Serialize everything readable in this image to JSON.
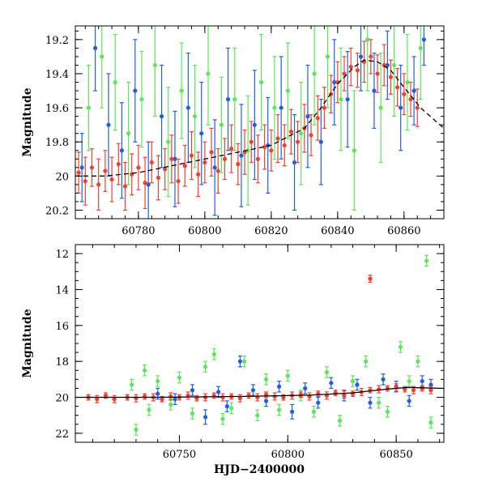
{
  "chart_data": [
    {
      "type": "scatter",
      "title": "",
      "xlabel": "",
      "ylabel": "Magnitude",
      "xlim": [
        60761,
        60872
      ],
      "ylim": [
        20.25,
        19.12
      ],
      "y_inverted": true,
      "xticks": [
        60780,
        60800,
        60820,
        60840,
        60860
      ],
      "yticks": [
        19.2,
        19.4,
        19.6,
        19.8,
        20,
        20.2
      ],
      "ytick_labels": [
        "19.2",
        "19.4",
        "19.6",
        "19.8",
        "20",
        "20.2"
      ],
      "grid": false,
      "legend": "none",
      "colors": {
        "blue": "#1f5fe0",
        "green": "#5ae85a",
        "red": "#f2402e",
        "model": "#000000"
      },
      "model_curve": {
        "style": "dashed",
        "x": [
          60761,
          60770,
          60780,
          60790,
          60800,
          60810,
          60820,
          60830,
          60835,
          60840,
          60845,
          60848,
          60852,
          60856,
          60860,
          60865,
          60872
        ],
        "y": [
          20.0,
          20.0,
          19.98,
          19.94,
          19.9,
          19.86,
          19.82,
          19.72,
          19.6,
          19.46,
          19.36,
          19.32,
          19.33,
          19.38,
          19.48,
          19.6,
          19.72
        ]
      },
      "series": [
        {
          "color": "red",
          "x": [
            60762,
            60764,
            60766,
            60768,
            60770,
            60772,
            60774,
            60776,
            60778,
            60780,
            60782,
            60784,
            60786,
            60788,
            60790,
            60792,
            60794,
            60796,
            60798,
            60800,
            60802,
            60804,
            60806,
            60808,
            60810,
            60812,
            60814,
            60816,
            60818,
            60820,
            60822,
            60824,
            60826,
            60828,
            60830,
            60832,
            60834,
            60836,
            60838,
            60840,
            60842,
            60844,
            60846,
            60848,
            60850,
            60852,
            60854,
            60856,
            60858,
            60860,
            60862,
            60864
          ],
          "y": [
            19.98,
            20.03,
            19.95,
            20.05,
            19.97,
            20.02,
            19.93,
            20.06,
            19.99,
            19.95,
            20.04,
            19.92,
            20.01,
            19.96,
            19.9,
            20.03,
            19.94,
            19.88,
            19.99,
            19.92,
            19.86,
            19.97,
            19.9,
            19.84,
            19.93,
            19.86,
            19.8,
            19.9,
            19.83,
            19.85,
            19.78,
            19.82,
            19.74,
            19.8,
            19.72,
            19.76,
            19.66,
            19.6,
            19.52,
            19.45,
            19.4,
            19.36,
            19.38,
            19.33,
            19.3,
            19.4,
            19.35,
            19.42,
            19.48,
            19.52,
            19.55,
            19.6
          ],
          "err": [
            0.12,
            0.14,
            0.11,
            0.15,
            0.12,
            0.13,
            0.12,
            0.14,
            0.12,
            0.13,
            0.15,
            0.12,
            0.13,
            0.12,
            0.14,
            0.13,
            0.12,
            0.14,
            0.13,
            0.12,
            0.14,
            0.13,
            0.12,
            0.14,
            0.12,
            0.13,
            0.12,
            0.14,
            0.13,
            0.12,
            0.14,
            0.12,
            0.13,
            0.12,
            0.14,
            0.12,
            0.13,
            0.12,
            0.11,
            0.12,
            0.1,
            0.11,
            0.1,
            0.12,
            0.1,
            0.11,
            0.12,
            0.1,
            0.11,
            0.12,
            0.1,
            0.11
          ]
        },
        {
          "color": "blue",
          "x": [
            60763,
            60767,
            60771,
            60775,
            60779,
            60783,
            60787,
            60791,
            60795,
            60799,
            60803,
            60807,
            60811,
            60815,
            60819,
            60823,
            60827,
            60831,
            60835,
            60839,
            60843,
            60847,
            60851,
            60855,
            60859,
            60863,
            60866
          ],
          "y": [
            19.95,
            19.25,
            19.7,
            19.85,
            19.5,
            20.05,
            19.65,
            19.9,
            19.6,
            19.75,
            19.95,
            19.55,
            19.88,
            19.7,
            19.82,
            19.6,
            19.92,
            19.65,
            19.8,
            19.45,
            19.55,
            19.3,
            19.5,
            19.35,
            19.6,
            19.5,
            19.2
          ],
          "err": [
            0.2,
            0.25,
            0.3,
            0.28,
            0.3,
            0.25,
            0.3,
            0.28,
            0.32,
            0.3,
            0.28,
            0.3,
            0.3,
            0.32,
            0.28,
            0.3,
            0.28,
            0.3,
            0.25,
            0.25,
            0.28,
            0.2,
            0.22,
            0.2,
            0.25,
            0.2,
            0.15
          ]
        },
        {
          "color": "green",
          "x": [
            60765,
            60769,
            60773,
            60777,
            60781,
            60785,
            60789,
            60793,
            60797,
            60801,
            60805,
            60809,
            60813,
            60817,
            60821,
            60825,
            60829,
            60833,
            60837,
            60841,
            60845,
            60849,
            60853,
            60857,
            60861,
            60865
          ],
          "y": [
            19.6,
            19.3,
            19.45,
            19.75,
            19.55,
            19.35,
            19.8,
            19.5,
            19.65,
            19.4,
            19.7,
            19.55,
            19.85,
            19.45,
            19.6,
            19.5,
            19.75,
            19.4,
            19.3,
            19.55,
            19.85,
            19.2,
            19.6,
            19.35,
            19.45,
            19.25
          ],
          "err": [
            0.25,
            0.3,
            0.28,
            0.3,
            0.28,
            0.3,
            0.32,
            0.28,
            0.3,
            0.3,
            0.28,
            0.3,
            0.32,
            0.28,
            0.3,
            0.28,
            0.3,
            0.3,
            0.3,
            0.3,
            0.35,
            0.3,
            0.32,
            0.3,
            0.28,
            0.3
          ]
        }
      ]
    },
    {
      "type": "scatter",
      "title": "",
      "xlabel": "HJD−2400000",
      "ylabel": "Magnitude",
      "xlim": [
        60702,
        60872
      ],
      "ylim": [
        22.5,
        11.5
      ],
      "y_inverted": true,
      "xticks": [
        60750,
        60800,
        60850
      ],
      "yticks": [
        12,
        14,
        16,
        18,
        20,
        22
      ],
      "ytick_labels": [
        "12",
        "14",
        "16",
        "18",
        "20",
        "22"
      ],
      "grid": false,
      "legend": "none",
      "colors": {
        "blue": "#1f5fe0",
        "green": "#5ae85a",
        "red": "#f2402e",
        "model": "#000000"
      },
      "model_curve": {
        "style": "solid",
        "x": [
          60702,
          60740,
          60780,
          60810,
          60830,
          60845,
          60855,
          60872
        ],
        "y": [
          20.0,
          20.0,
          19.95,
          19.88,
          19.75,
          19.55,
          19.45,
          19.5
        ]
      },
      "series": [
        {
          "color": "red",
          "x": [
            60708,
            60712,
            60716,
            60720,
            60726,
            60730,
            60734,
            60738,
            60742,
            60746,
            60750,
            60754,
            60758,
            60762,
            60766,
            60770,
            60774,
            60778,
            60782,
            60786,
            60790,
            60794,
            60798,
            60802,
            60806,
            60810,
            60814,
            60818,
            60822,
            60826,
            60830,
            60834,
            60838,
            60842,
            60846,
            60850,
            60854,
            60858,
            60862,
            60866,
            60838
          ],
          "y": [
            20.0,
            20.1,
            19.9,
            20.1,
            20.0,
            20.05,
            19.95,
            20.0,
            20.1,
            19.95,
            20.0,
            19.9,
            20.05,
            20.0,
            19.9,
            20.0,
            19.95,
            20.05,
            19.9,
            20.0,
            19.85,
            19.95,
            20.0,
            19.9,
            19.85,
            19.95,
            19.8,
            19.9,
            19.75,
            19.85,
            19.8,
            19.7,
            19.6,
            19.55,
            19.5,
            19.45,
            19.55,
            19.6,
            19.5,
            19.6,
            13.4
          ],
          "err": [
            0.15,
            0.2,
            0.15,
            0.2,
            0.15,
            0.2,
            0.15,
            0.2,
            0.15,
            0.2,
            0.15,
            0.2,
            0.15,
            0.2,
            0.15,
            0.2,
            0.15,
            0.2,
            0.15,
            0.2,
            0.15,
            0.2,
            0.15,
            0.2,
            0.15,
            0.2,
            0.15,
            0.2,
            0.15,
            0.2,
            0.15,
            0.2,
            0.15,
            0.2,
            0.15,
            0.2,
            0.15,
            0.2,
            0.15,
            0.2,
            0.2
          ]
        },
        {
          "color": "blue",
          "x": [
            60740,
            60748,
            60756,
            60762,
            60768,
            60772,
            60778,
            60784,
            60790,
            60796,
            60802,
            60808,
            60814,
            60820,
            60826,
            60832,
            60838,
            60844,
            60850,
            60856,
            60862,
            60866
          ],
          "y": [
            19.8,
            20.1,
            19.6,
            21.1,
            19.7,
            20.5,
            18.0,
            19.6,
            20.2,
            19.4,
            20.8,
            19.5,
            20.3,
            19.2,
            19.9,
            19.3,
            20.3,
            19.0,
            19.4,
            20.2,
            19.1,
            19.3
          ],
          "err": [
            0.3,
            0.3,
            0.3,
            0.4,
            0.3,
            0.3,
            0.3,
            0.3,
            0.3,
            0.3,
            0.4,
            0.3,
            0.3,
            0.3,
            0.3,
            0.3,
            0.3,
            0.3,
            0.3,
            0.3,
            0.3,
            0.3
          ]
        },
        {
          "color": "green",
          "x": [
            60728,
            60730,
            60734,
            60736,
            60740,
            60746,
            60750,
            60756,
            60762,
            60766,
            60770,
            60774,
            60780,
            60786,
            60790,
            60796,
            60800,
            60806,
            60812,
            60818,
            60824,
            60830,
            60836,
            60842,
            60846,
            60852,
            60856,
            60860,
            60864,
            60866
          ],
          "y": [
            19.3,
            21.8,
            18.5,
            20.7,
            19.1,
            20.4,
            18.9,
            20.9,
            18.3,
            17.6,
            21.2,
            20.6,
            18.0,
            21.0,
            19.0,
            20.7,
            18.8,
            19.9,
            20.8,
            18.6,
            21.3,
            19.1,
            18.0,
            20.3,
            20.8,
            17.2,
            19.1,
            18.0,
            12.4,
            21.4
          ],
          "err": [
            0.3,
            0.3,
            0.3,
            0.3,
            0.3,
            0.3,
            0.3,
            0.3,
            0.3,
            0.3,
            0.3,
            0.3,
            0.3,
            0.3,
            0.3,
            0.3,
            0.3,
            0.3,
            0.3,
            0.3,
            0.3,
            0.3,
            0.3,
            0.3,
            0.3,
            0.3,
            0.3,
            0.3,
            0.3,
            0.3
          ]
        }
      ]
    }
  ]
}
